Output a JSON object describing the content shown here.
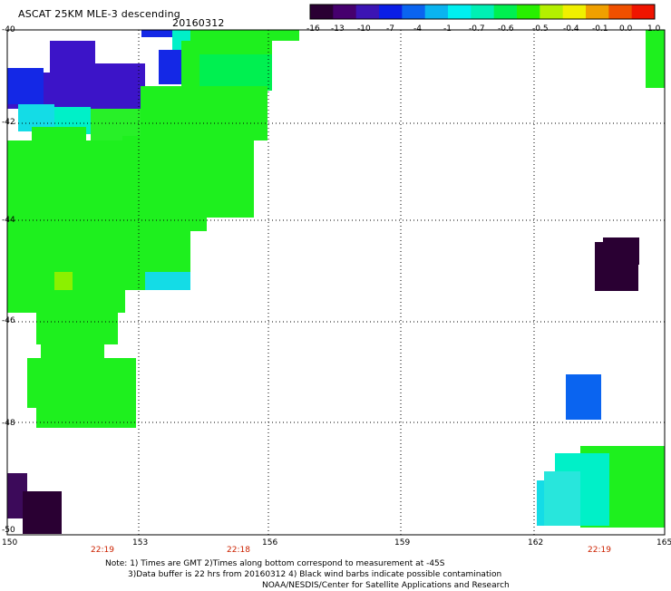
{
  "header": {
    "title": "ASCAT 25KM MLE-3 descending",
    "date": "20160312"
  },
  "colorbar": {
    "labels": [
      "-16",
      "-13",
      "-10",
      "-7",
      "-4",
      "-1",
      "-0.7",
      "-0.6",
      "-0.5",
      "-0.4",
      "-0.1",
      "0.0",
      "1.0"
    ],
    "colors": [
      "#2a0033",
      "#46006e",
      "#3c14b4",
      "#0a1ee6",
      "#0a64f0",
      "#0ab4f0",
      "#00f0f0",
      "#00f0b4",
      "#00f050",
      "#28f000",
      "#b4f000",
      "#f0f000",
      "#f0a000",
      "#f05000",
      "#f01400"
    ]
  },
  "map": {
    "x_labels": [
      "150",
      "153",
      "156",
      "159",
      "162",
      "165"
    ],
    "y_labels": [
      "-40",
      "-42",
      "-44",
      "-46",
      "-48",
      "-50"
    ],
    "time_labels": [
      "22:19",
      "22:18",
      "22:19"
    ]
  },
  "notes": {
    "line1": "Note: 1) Times are GMT 2)Times along bottom correspond to measurement at -45S",
    "line2": "3)Data buffer is 22 hrs from 20160312 4) Black wind barbs indicate possible contamination",
    "line3": "NOAA/NESDIS/Center for Satellite Applications and Research"
  }
}
